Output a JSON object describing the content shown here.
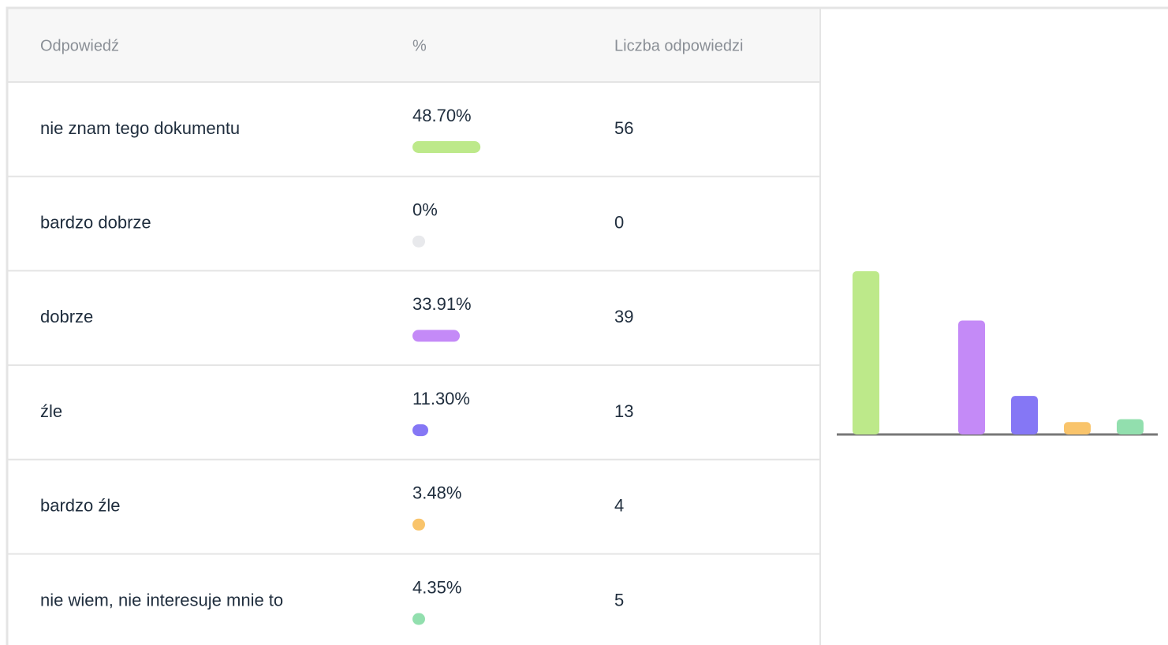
{
  "table": {
    "columns": [
      "Odpowiedź",
      "%",
      "Liczba odpowiedzi"
    ],
    "rows": [
      {
        "answer": "nie znam tego dokumentu",
        "percent": 48.7,
        "percent_label": "48.70%",
        "count": 56,
        "color": "#bde98a"
      },
      {
        "answer": "bardzo dobrze",
        "percent": 0,
        "percent_label": "0%",
        "count": 0,
        "color": "#e8e9ec"
      },
      {
        "answer": "dobrze",
        "percent": 33.91,
        "percent_label": "33.91%",
        "count": 39,
        "color": "#c48af7"
      },
      {
        "answer": "źle",
        "percent": 11.3,
        "percent_label": "11.30%",
        "count": 13,
        "color": "#8577f5"
      },
      {
        "answer": "bardzo źle",
        "percent": 3.48,
        "percent_label": "3.48%",
        "count": 4,
        "color": "#f9c46b"
      },
      {
        "answer": "nie wiem, nie interesuje mnie to",
        "percent": 4.35,
        "percent_label": "4.35%",
        "count": 5,
        "color": "#92dfae"
      }
    ]
  }
}
